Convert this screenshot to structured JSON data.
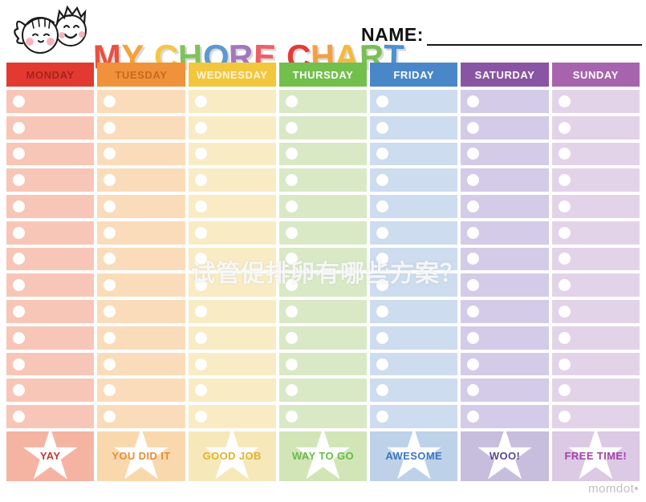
{
  "page": {
    "title_text": "MY CHORE CHART",
    "title_letters": [
      {
        "ch": "M",
        "color": "#e8523f"
      },
      {
        "ch": "Y",
        "color": "#f6a139"
      },
      {
        "ch": " ",
        "color": ""
      },
      {
        "ch": "C",
        "color": "#f6c545"
      },
      {
        "ch": "H",
        "color": "#7fc35a"
      },
      {
        "ch": "O",
        "color": "#5b99d2"
      },
      {
        "ch": "R",
        "color": "#a277bd"
      },
      {
        "ch": "E",
        "color": "#ec5f66"
      },
      {
        "ch": " ",
        "color": ""
      },
      {
        "ch": "C",
        "color": "#e23c35"
      },
      {
        "ch": "H",
        "color": "#f2a041"
      },
      {
        "ch": "A",
        "color": "#f3b93e"
      },
      {
        "ch": "R",
        "color": "#7abf56"
      },
      {
        "ch": "T",
        "color": "#4f90cd"
      }
    ],
    "name_label": "NAME:"
  },
  "chart": {
    "rows_per_column": 13,
    "days": [
      {
        "label": "MONDAY",
        "header_bg": "#e23a30",
        "header_text": "#a5231d",
        "row_bg": "#f8c6b6",
        "reward_bg": "#f5b4a2",
        "reward_label": "YAY",
        "reward_text": "#bf3b2e"
      },
      {
        "label": "TUESDAY",
        "header_bg": "#f0923c",
        "header_text": "#c8681c",
        "row_bg": "#fbdcba",
        "reward_bg": "#fad8ae",
        "reward_label": "YOU DID IT",
        "reward_text": "#e68e35"
      },
      {
        "label": "WEDNESDAY",
        "header_bg": "#f2c73e",
        "header_text": "#fdf4d6",
        "row_bg": "#f9ecc4",
        "reward_bg": "#f7e8ba",
        "reward_label": "GOOD JOB",
        "reward_text": "#dfb52f"
      },
      {
        "label": "THURSDAY",
        "header_bg": "#72bf4c",
        "header_text": "#ffffff",
        "row_bg": "#d9e9c6",
        "reward_bg": "#d2e5b6",
        "reward_label": "WAY TO GO",
        "reward_text": "#67bb4a"
      },
      {
        "label": "FRIDAY",
        "header_bg": "#4a87c9",
        "header_text": "#ffffff",
        "row_bg": "#cddcef",
        "reward_bg": "#bdd1e9",
        "reward_label": "AWESOME",
        "reward_text": "#3a76c4"
      },
      {
        "label": "SATURDAY",
        "header_bg": "#8a54a4",
        "header_text": "#ffffff",
        "row_bg": "#d3cbe7",
        "reward_bg": "#c7bddd",
        "reward_label": "WOO!",
        "reward_text": "#574a90"
      },
      {
        "label": "SUNDAY",
        "header_bg": "#a763ae",
        "header_text": "#ffffff",
        "row_bg": "#e3d3e9",
        "reward_bg": "#dcc9e3",
        "reward_label": "FREE TIME!",
        "reward_text": "#a342a9"
      }
    ]
  },
  "watermarks": {
    "center_text": "试管促排卵有哪些方案？",
    "brand": "momdot•"
  }
}
